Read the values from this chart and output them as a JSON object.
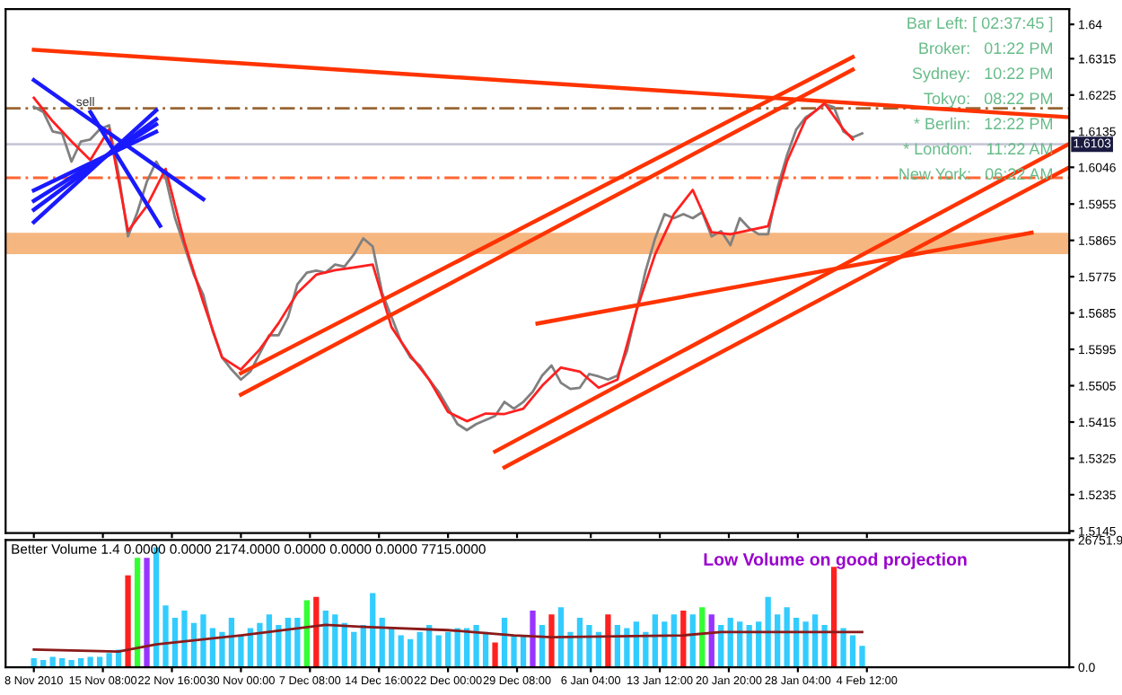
{
  "chart_data": [
    {
      "type": "line",
      "xlim": [
        "2010-11-05",
        "2011-02-26"
      ],
      "ylim": [
        1.514,
        1.6438
      ],
      "tick_labels": "y",
      "grid": false,
      "legend": false,
      "yticks": [
        1.5145,
        1.5235,
        1.5325,
        1.5415,
        1.5505,
        1.5595,
        1.5685,
        1.5775,
        1.5865,
        1.5955,
        1.6046,
        1.6135,
        1.6225,
        1.6315,
        1.64
      ],
      "xticks": [
        {
          "value": "2010-11-08",
          "label": null
        },
        {
          "value": "2010-11-15T08:00",
          "label": null
        },
        {
          "value": "2010-11-22T16:00",
          "label": null
        },
        {
          "value": "2010-11-30T00:00",
          "label": null
        },
        {
          "value": "2010-12-07T08:00",
          "label": null
        },
        {
          "value": "2010-12-14T16:00",
          "label": null
        },
        {
          "value": "2010-12-22T00:00",
          "label": null
        },
        {
          "value": "2010-12-29T08:00",
          "label": null
        },
        {
          "value": "2011-01-06T04:00",
          "label": null
        },
        {
          "value": "2011-01-13T12:00",
          "label": null
        },
        {
          "value": "2011-01-20T20:00",
          "label": null
        },
        {
          "value": "2011-01-28T04:00",
          "label": null
        },
        {
          "value": "2011-02-04T12:00",
          "label": null
        }
      ],
      "series": [
        {
          "color": "#808080",
          "x": [
            "2010-11-08",
            "2010-11-09",
            "2010-11-10",
            "2010-11-11",
            "2010-11-12",
            "2010-11-13",
            "2010-11-14",
            "2010-11-15",
            "2010-11-16",
            "2010-11-17",
            "2010-11-18",
            "2010-11-19",
            "2010-11-20",
            "2010-11-21",
            "2010-11-22",
            "2010-11-23",
            "2010-11-24",
            "2010-11-25",
            "2010-11-26",
            "2010-11-27",
            "2010-11-28",
            "2010-11-29",
            "2010-11-30",
            "2010-12-01",
            "2010-12-02",
            "2010-12-03",
            "2010-12-04",
            "2010-12-05",
            "2010-12-06",
            "2010-12-07",
            "2010-12-08",
            "2010-12-09",
            "2010-12-10",
            "2010-12-11",
            "2010-12-12",
            "2010-12-13",
            "2010-12-14",
            "2010-12-15",
            "2010-12-16",
            "2010-12-17",
            "2010-12-18",
            "2010-12-19",
            "2010-12-20",
            "2010-12-21",
            "2010-12-22",
            "2010-12-23",
            "2010-12-24",
            "2010-12-25",
            "2010-12-26",
            "2010-12-27",
            "2010-12-28",
            "2010-12-29",
            "2010-12-30",
            "2010-12-31",
            "2011-01-01",
            "2011-01-02",
            "2011-01-03",
            "2011-01-04",
            "2011-01-05",
            "2011-01-06",
            "2011-01-07",
            "2011-01-08",
            "2011-01-09",
            "2011-01-10",
            "2011-01-11",
            "2011-01-12",
            "2011-01-13",
            "2011-01-14",
            "2011-01-15",
            "2011-01-16",
            "2011-01-17",
            "2011-01-18",
            "2011-01-19",
            "2011-01-20",
            "2011-01-21",
            "2011-01-22",
            "2011-01-23",
            "2011-01-24",
            "2011-01-25",
            "2011-01-26",
            "2011-01-27",
            "2011-01-28",
            "2011-01-29",
            "2011-01-30",
            "2011-01-31",
            "2011-02-01",
            "2011-02-02",
            "2011-02-03",
            "2011-02-04"
          ],
          "values": [
            1.6196,
            1.6183,
            1.6135,
            1.613,
            1.606,
            1.611,
            1.6115,
            1.614,
            1.615,
            1.603,
            1.5875,
            1.5935,
            1.601,
            1.606,
            1.602,
            1.592,
            1.585,
            1.578,
            1.573,
            1.564,
            1.5575,
            1.5545,
            1.552,
            1.554,
            1.5585,
            1.563,
            1.563,
            1.5675,
            1.5756,
            1.5785,
            1.579,
            1.5785,
            1.5805,
            1.58,
            1.583,
            1.587,
            1.585,
            1.5735,
            1.5675,
            1.5615,
            1.5575,
            1.5555,
            1.552,
            1.549,
            1.545,
            1.541,
            1.5395,
            1.541,
            1.542,
            1.543,
            1.5465,
            1.5448,
            1.5465,
            1.549,
            1.553,
            1.5555,
            1.5512,
            1.5497,
            1.55,
            1.5534,
            1.5528,
            1.552,
            1.553,
            1.559,
            1.569,
            1.579,
            1.587,
            1.593,
            1.592,
            1.593,
            1.592,
            1.5935,
            1.5875,
            1.5888,
            1.5853,
            1.592,
            1.5895,
            1.588,
            1.588,
            1.5995,
            1.6075,
            1.614,
            1.617,
            1.6185,
            1.6202,
            1.6195,
            1.6135,
            1.612,
            1.613
          ]
        },
        {
          "color": "#ff2020",
          "x": [
            "2010-11-08",
            "2010-11-10",
            "2010-11-12",
            "2010-11-14",
            "2010-11-16",
            "2010-11-18",
            "2010-11-20",
            "2010-11-22",
            "2010-11-24",
            "2010-11-26",
            "2010-11-28",
            "2010-11-30",
            "2010-12-02",
            "2010-12-04",
            "2010-12-06",
            "2010-12-08",
            "2010-12-10",
            "2010-12-12",
            "2010-12-14",
            "2010-12-16",
            "2010-12-18",
            "2010-12-20",
            "2010-12-22",
            "2010-12-24",
            "2010-12-26",
            "2010-12-28",
            "2010-12-30",
            "2011-01-01",
            "2011-01-03",
            "2011-01-05",
            "2011-01-07",
            "2011-01-09",
            "2011-01-11",
            "2011-01-13",
            "2011-01-15",
            "2011-01-17",
            "2011-01-19",
            "2011-01-21",
            "2011-01-23",
            "2011-01-25",
            "2011-01-27",
            "2011-01-29",
            "2011-01-31",
            "2011-02-02",
            "2011-02-03"
          ],
          "values": [
            1.6218,
            1.616,
            1.611,
            1.6064,
            1.614,
            1.5888,
            1.595,
            1.6042,
            1.586,
            1.5712,
            1.5575,
            1.5545,
            1.5595,
            1.566,
            1.5735,
            1.578,
            1.5791,
            1.5798,
            1.5805,
            1.565,
            1.558,
            1.552,
            1.544,
            1.5417,
            1.5436,
            1.5435,
            1.5448,
            1.5505,
            1.555,
            1.554,
            1.55,
            1.552,
            1.569,
            1.583,
            1.593,
            1.599,
            1.5885,
            1.588,
            1.589,
            1.59,
            1.606,
            1.6165,
            1.6205,
            1.614,
            1.6115
          ]
        },
        {
          "color": "#ff3300",
          "x": [
            "2010-11-08",
            "2011-02-26"
          ],
          "values": [
            1.6337,
            1.617
          ]
        },
        {
          "color": "#ff3300",
          "x": [
            "2010-11-30",
            "2011-02-03"
          ],
          "values": [
            1.5536,
            1.6319
          ]
        },
        {
          "color": "#ff3300",
          "x": [
            "2010-11-30",
            "2011-02-03"
          ],
          "values": [
            1.5483,
            1.6288
          ]
        },
        {
          "color": "#ff3300",
          "x": [
            "2010-12-27",
            "2011-02-26"
          ],
          "values": [
            1.5342,
            1.6104
          ]
        },
        {
          "color": "#ff3300",
          "x": [
            "2010-12-28",
            "2011-02-26"
          ],
          "values": [
            1.5303,
            1.6046
          ]
        },
        {
          "color": "#ff3300",
          "x": [
            "2010-12-31T12:00",
            "2011-02-22"
          ],
          "values": [
            1.5659,
            1.5884
          ]
        },
        {
          "color": "#1a1aff",
          "x": [
            "2010-11-08",
            "2010-11-26"
          ],
          "values": [
            1.6262,
            1.5967
          ]
        },
        {
          "color": "#1a1aff",
          "x": [
            "2010-11-14",
            "2010-11-21T10:00"
          ],
          "values": [
            1.6183,
            1.5901
          ]
        },
        {
          "color": "#1a1aff",
          "x": [
            "2010-11-08",
            "2010-11-21"
          ],
          "values": [
            1.591,
            1.6187
          ]
        },
        {
          "color": "#1a1aff",
          "x": [
            "2010-11-08",
            "2010-11-21"
          ],
          "values": [
            1.5941,
            1.6165
          ]
        },
        {
          "color": "#1a1aff",
          "x": [
            "2010-11-08",
            "2010-11-21"
          ],
          "values": [
            1.5963,
            1.6152
          ]
        },
        {
          "color": "#1a1aff",
          "x": [
            "2010-11-08",
            "2010-11-21"
          ],
          "values": [
            1.5989,
            1.6134
          ]
        }
      ],
      "ref_lines": [
        {
          "axis": "y",
          "value": 1.6192,
          "color": "#996633",
          "line_style": "dashed"
        },
        {
          "axis": "y",
          "value": 1.602,
          "color": "#ff6633",
          "line_style": "dashed"
        },
        {
          "axis": "y",
          "value": 1.6103,
          "color": "#c8c8d8",
          "line_style": "solid",
          "label": "1.6103"
        }
      ],
      "bands": [
        {
          "axis": "y",
          "from": 1.5831,
          "to": 1.5884,
          "color": "#f4a460"
        }
      ],
      "annotations": [
        "Bar Left: [ 02:37:45 ]",
        "Broker:   01:22 PM",
        "Sydney:   10:22 PM",
        "Tokyo:   08:22 PM",
        "* Berlin:   12:22 PM",
        "* London:   11:22 AM",
        "New York:   06:22 AM",
        "sell"
      ]
    },
    {
      "type": "bar",
      "xlim": [
        "2010-11-05",
        "2011-02-26"
      ],
      "ylim": [
        0,
        26751.9
      ],
      "grid": false,
      "legend": false,
      "title": "Better Volume 1.4 0.0000 0.0000 2174.0000 0.0000 0.0000 0.0000 7715.0000",
      "yticks": [
        {
          "value": 0,
          "label": "0.0"
        },
        26751.9
      ],
      "xticks": [
        {
          "value": "2010-11-08",
          "label": "8 Nov 2010"
        },
        {
          "value": "2010-11-15T08:00",
          "label": "15 Nov 08:00"
        },
        {
          "value": "2010-11-22T16:00",
          "label": "22 Nov 16:00"
        },
        {
          "value": "2010-11-30T00:00",
          "label": "30 Nov 00:00"
        },
        {
          "value": "2010-12-07T08:00",
          "label": "7 Dec 08:00"
        },
        {
          "value": "2010-12-14T16:00",
          "label": "14 Dec 16:00"
        },
        {
          "value": "2010-12-22T00:00",
          "label": "22 Dec 00:00"
        },
        {
          "value": "2010-12-29T08:00",
          "label": "29 Dec 08:00"
        },
        {
          "value": "2011-01-06T04:00",
          "label": "6 Jan 04:00"
        },
        {
          "value": "2011-01-13T12:00",
          "label": "13 Jan 12:00"
        },
        {
          "value": "2011-01-20T20:00",
          "label": "20 Jan 20:00"
        },
        {
          "value": "2011-01-28T04:00",
          "label": "28 Jan 04:00"
        },
        {
          "value": "2011-02-04T12:00",
          "label": "4 Feb 12:00"
        }
      ],
      "series": [
        {
          "x": [
            "2010-11-08",
            "2010-11-09",
            "2010-11-10",
            "2010-11-11",
            "2010-11-12",
            "2010-11-13",
            "2010-11-14",
            "2010-11-15",
            "2010-11-16",
            "2010-11-17",
            "2010-11-18",
            "2010-11-19",
            "2010-11-20",
            "2010-11-21",
            "2010-11-22",
            "2010-11-23",
            "2010-11-24",
            "2010-11-25",
            "2010-11-26",
            "2010-11-27",
            "2010-11-28",
            "2010-11-29",
            "2010-11-30",
            "2010-12-01",
            "2010-12-02",
            "2010-12-03",
            "2010-12-04",
            "2010-12-05",
            "2010-12-06",
            "2010-12-07",
            "2010-12-08",
            "2010-12-09",
            "2010-12-10",
            "2010-12-11",
            "2010-12-12",
            "2010-12-13",
            "2010-12-14",
            "2010-12-15",
            "2010-12-16",
            "2010-12-17",
            "2010-12-18",
            "2010-12-19",
            "2010-12-20",
            "2010-12-21",
            "2010-12-22",
            "2010-12-23",
            "2010-12-24",
            "2010-12-25",
            "2010-12-26",
            "2010-12-27",
            "2010-12-28",
            "2010-12-29",
            "2010-12-30",
            "2010-12-31",
            "2011-01-01",
            "2011-01-02",
            "2011-01-03",
            "2011-01-04",
            "2011-01-05",
            "2011-01-06",
            "2011-01-07",
            "2011-01-08",
            "2011-01-09",
            "2011-01-10",
            "2011-01-11",
            "2011-01-12",
            "2011-01-13",
            "2011-01-14",
            "2011-01-15",
            "2011-01-16",
            "2011-01-17",
            "2011-01-18",
            "2011-01-19",
            "2011-01-20",
            "2011-01-21",
            "2011-01-22",
            "2011-01-23",
            "2011-01-24",
            "2011-01-25",
            "2011-01-26",
            "2011-01-27",
            "2011-01-28",
            "2011-01-29",
            "2011-01-30",
            "2011-01-31",
            "2011-02-01",
            "2011-02-02",
            "2011-02-03",
            "2011-02-04"
          ],
          "values": [
            1900,
            1500,
            2200,
            1900,
            1500,
            1900,
            2200,
            2200,
            3000,
            3700,
            19300,
            23000,
            23000,
            25200,
            13000,
            10400,
            11900,
            9300,
            11100,
            8200,
            7400,
            10400,
            6700,
            8200,
            9300,
            11100,
            8900,
            10400,
            10400,
            14100,
            14800,
            11900,
            11100,
            9300,
            7400,
            8900,
            15600,
            10400,
            8200,
            6700,
            5900,
            7400,
            8900,
            6700,
            7400,
            8200,
            8200,
            8900,
            7400,
            5200,
            10400,
            6700,
            6700,
            11900,
            8900,
            11100,
            12600,
            7400,
            10400,
            8900,
            7400,
            11100,
            8900,
            8200,
            9600,
            7400,
            11100,
            9600,
            11100,
            11900,
            11100,
            12600,
            11100,
            8900,
            10400,
            9600,
            8900,
            9600,
            14800,
            11100,
            12600,
            10400,
            9600,
            11100,
            8900,
            21100,
            8200,
            6700,
            4500
          ],
          "colors": [
            "#33ccff",
            "#33ccff",
            "#33ccff",
            "#33ccff",
            "#33ccff",
            "#33ccff",
            "#33ccff",
            "#33ccff",
            "#33ccff",
            "#33ccff",
            "#ff2020",
            "#33ff33",
            "#9933ff",
            "#33ccff",
            "#33ccff",
            "#33ccff",
            "#33ccff",
            "#33ccff",
            "#33ccff",
            "#33ccff",
            "#33ccff",
            "#33ccff",
            "#33ccff",
            "#33ccff",
            "#33ccff",
            "#33ccff",
            "#33ccff",
            "#33ccff",
            "#33ccff",
            "#33ff33",
            "#ff2020",
            "#33ccff",
            "#33ccff",
            "#33ccff",
            "#33ccff",
            "#33ccff",
            "#33ccff",
            "#33ccff",
            "#33ccff",
            "#33ccff",
            "#33ccff",
            "#33ccff",
            "#33ccff",
            "#33ccff",
            "#33ccff",
            "#33ccff",
            "#33ccff",
            "#33ccff",
            "#33ccff",
            "#ff2020",
            "#33ccff",
            "#33ccff",
            "#33ccff",
            "#9933ff",
            "#33ccff",
            "#ff2020",
            "#33ccff",
            "#33ccff",
            "#33ccff",
            "#33ccff",
            "#33ccff",
            "#ff2020",
            "#33ccff",
            "#33ccff",
            "#33ccff",
            "#33ccff",
            "#33ccff",
            "#33ccff",
            "#33ccff",
            "#ff2020",
            "#33ccff",
            "#33ff33",
            "#9933ff",
            "#33ccff",
            "#33ccff",
            "#33ccff",
            "#33ccff",
            "#33ccff",
            "#33ccff",
            "#33ccff",
            "#33ccff",
            "#33ccff",
            "#33ccff",
            "#33ccff",
            "#33ccff",
            "#ff2020",
            "#33ccff",
            "#33ccff",
            "#33ccff"
          ]
        },
        {
          "type": "line",
          "color": "#8b1a1a",
          "x": [
            "2010-11-08",
            "2010-11-17",
            "2010-11-21",
            "2010-11-30",
            "2010-12-09",
            "2010-12-13",
            "2010-12-22",
            "2010-12-29",
            "2011-01-02",
            "2011-01-16",
            "2011-01-20",
            "2011-01-27",
            "2011-02-04"
          ],
          "values": [
            3700,
            3300,
            4800,
            6700,
            8900,
            8500,
            7800,
            6700,
            6300,
            6700,
            7400,
            7400,
            7400
          ]
        }
      ],
      "annotations": [
        "Low Volume on good projection"
      ]
    }
  ]
}
